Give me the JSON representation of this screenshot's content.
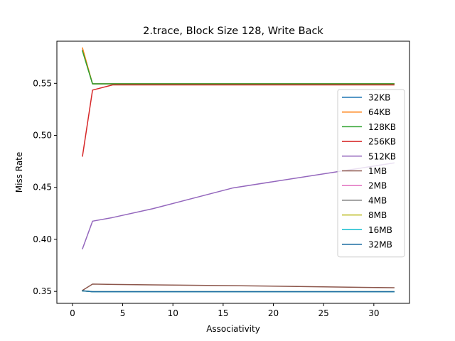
{
  "chart_data": {
    "type": "line",
    "title": "2.trace, Block Size 128, Write Back",
    "xlabel": "Associativity",
    "ylabel": "Miss Rate",
    "xlim": [
      -1.55,
      33.55
    ],
    "ylim": [
      0.3385,
      0.5905
    ],
    "xticks": [
      0,
      5,
      10,
      15,
      20,
      25,
      30
    ],
    "yticks": [
      0.35,
      0.4,
      0.45,
      0.5,
      0.55
    ],
    "ytick_labels": [
      "0.35",
      "0.40",
      "0.45",
      "0.50",
      "0.55"
    ],
    "legend_position": "right",
    "grid": false,
    "series": [
      {
        "name": "32KB",
        "color": "#1f77b4",
        "x": [
          1,
          2,
          4,
          8,
          16,
          32
        ],
        "y": [
          0.582,
          0.5495,
          0.5495,
          0.5495,
          0.5495,
          0.5495
        ]
      },
      {
        "name": "64KB",
        "color": "#ff7f0e",
        "x": [
          1,
          2,
          4,
          8,
          16,
          32
        ],
        "y": [
          0.584,
          0.5495,
          0.5495,
          0.5495,
          0.5495,
          0.5495
        ]
      },
      {
        "name": "128KB",
        "color": "#2ca02c",
        "x": [
          1,
          2,
          4,
          8,
          16,
          32
        ],
        "y": [
          0.581,
          0.5495,
          0.5495,
          0.5495,
          0.5495,
          0.5495
        ]
      },
      {
        "name": "256KB",
        "color": "#d62728",
        "x": [
          1,
          2,
          4,
          8,
          16,
          32
        ],
        "y": [
          0.48,
          0.5435,
          0.5485,
          0.5485,
          0.5485,
          0.5485
        ]
      },
      {
        "name": "512KB",
        "color": "#9467bd",
        "x": [
          1,
          2,
          4,
          8,
          16,
          32
        ],
        "y": [
          0.391,
          0.4175,
          0.421,
          0.4295,
          0.4495,
          0.4735
        ]
      },
      {
        "name": "1MB",
        "color": "#8c564b",
        "x": [
          1,
          2,
          4,
          8,
          16,
          32
        ],
        "y": [
          0.351,
          0.357,
          0.3567,
          0.3563,
          0.3555,
          0.3535
        ]
      },
      {
        "name": "2MB",
        "color": "#e377c2",
        "x": [
          1,
          2,
          4,
          8,
          16,
          32
        ],
        "y": [
          0.3505,
          0.3497,
          0.3497,
          0.3497,
          0.3497,
          0.3497
        ]
      },
      {
        "name": "4MB",
        "color": "#7f7f7f",
        "x": [
          1,
          2,
          4,
          8,
          16,
          32
        ],
        "y": [
          0.3505,
          0.3497,
          0.3497,
          0.3497,
          0.3497,
          0.3497
        ]
      },
      {
        "name": "8MB",
        "color": "#bcbd22",
        "x": [
          1,
          2,
          4,
          8,
          16,
          32
        ],
        "y": [
          0.3505,
          0.3497,
          0.3497,
          0.3497,
          0.3497,
          0.3497
        ]
      },
      {
        "name": "16MB",
        "color": "#17becf",
        "x": [
          1,
          2,
          4,
          8,
          16,
          32
        ],
        "y": [
          0.3505,
          0.3497,
          0.3497,
          0.3497,
          0.3497,
          0.3497
        ]
      },
      {
        "name": "32MB",
        "color": "#1f6fa4",
        "x": [
          1,
          2,
          4,
          8,
          16,
          32
        ],
        "y": [
          0.3505,
          0.3497,
          0.3497,
          0.3497,
          0.3497,
          0.3497
        ]
      }
    ]
  }
}
